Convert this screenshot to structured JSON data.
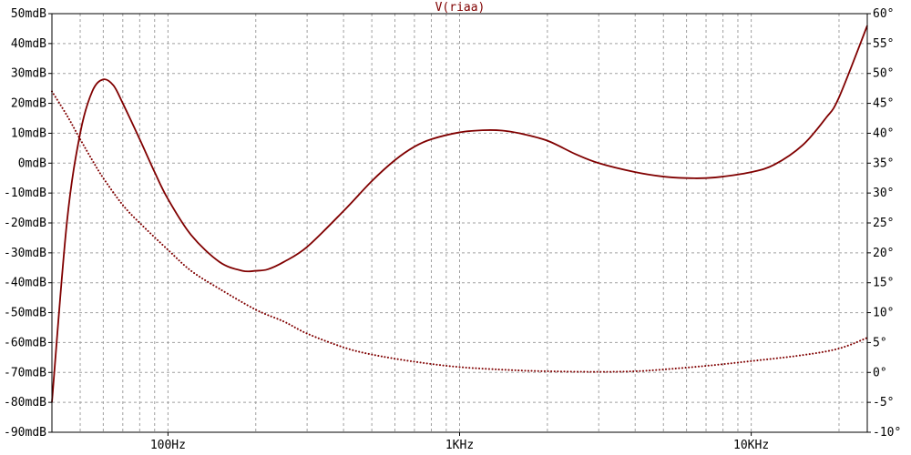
{
  "chart_data": {
    "type": "line",
    "title": "V(riaa)",
    "x_scale": "log",
    "xlim": [
      40,
      25000
    ],
    "x_ticks": [
      {
        "value": 100,
        "label": "100Hz"
      },
      {
        "value": 1000,
        "label": "1KHz"
      },
      {
        "value": 10000,
        "label": "10KHz"
      }
    ],
    "left_axis": {
      "unit": "mdB",
      "ylim": [
        -90,
        50
      ],
      "ticks": [
        "50mdB",
        "40mdB",
        "30mdB",
        "20mdB",
        "10mdB",
        "0mdB",
        "-10mdB",
        "-20mdB",
        "-30mdB",
        "-40mdB",
        "-50mdB",
        "-60mdB",
        "-70mdB",
        "-80mdB",
        "-90mdB"
      ]
    },
    "right_axis": {
      "unit": "°",
      "ylim": [
        -10,
        60
      ],
      "ticks": [
        "60°",
        "55°",
        "50°",
        "45°",
        "40°",
        "35°",
        "30°",
        "25°",
        "20°",
        "15°",
        "10°",
        "5°",
        "0°",
        "-5°",
        "-10°"
      ]
    },
    "grid": true,
    "series": [
      {
        "axis": "left",
        "style": "solid",
        "color": "#800000",
        "x": [
          40,
          45,
          50,
          55,
          60,
          65,
          70,
          80,
          90,
          100,
          120,
          150,
          180,
          200,
          220,
          250,
          300,
          400,
          500,
          600,
          700,
          800,
          1000,
          1200,
          1400,
          1600,
          2000,
          2500,
          3000,
          4000,
          5000,
          6000,
          7000,
          8000,
          10000,
          12000,
          15000,
          18000,
          20000,
          25000
        ],
        "values": [
          -80,
          -20,
          10,
          24,
          28,
          26,
          20,
          8,
          -3,
          -12,
          -24,
          -33,
          -36,
          -36,
          -35.5,
          -33,
          -28,
          -16,
          -6,
          1,
          5.5,
          8,
          10.3,
          11,
          10.9,
          10,
          7.5,
          3,
          0,
          -3,
          -4.5,
          -5,
          -5,
          -4.5,
          -3,
          -0.5,
          6,
          15,
          22,
          46
        ]
      },
      {
        "axis": "right",
        "style": "dotted",
        "color": "#800000",
        "x": [
          40,
          45,
          50,
          55,
          60,
          70,
          80,
          100,
          120,
          150,
          200,
          250,
          300,
          400,
          500,
          700,
          1000,
          1500,
          2000,
          3000,
          4000,
          5000,
          7000,
          10000,
          15000,
          20000,
          25000
        ],
        "values": [
          47,
          43,
          39,
          35.5,
          32.5,
          28,
          25,
          20.5,
          17,
          14,
          10.5,
          8.5,
          6.5,
          4.2,
          3,
          1.8,
          0.9,
          0.4,
          0.2,
          0.1,
          0.2,
          0.5,
          1.1,
          1.9,
          2.9,
          4,
          5.8
        ]
      }
    ]
  }
}
